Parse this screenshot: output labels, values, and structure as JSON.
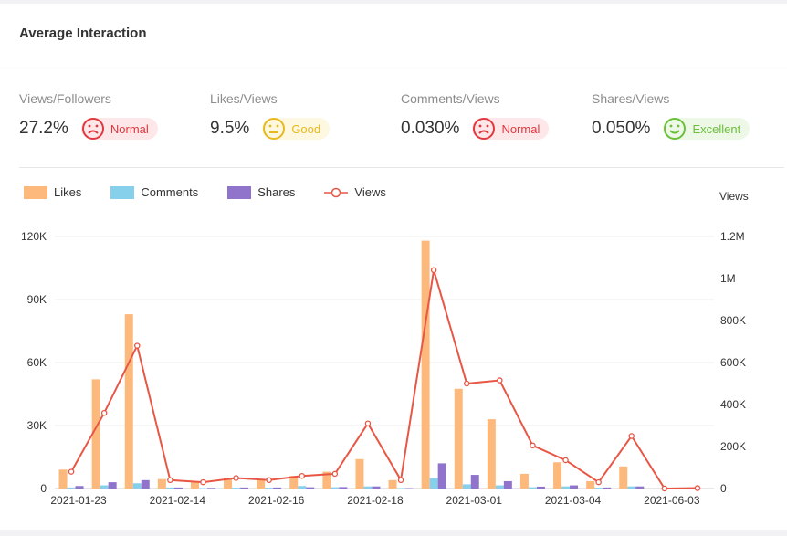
{
  "card": {
    "title": "Average Interaction"
  },
  "metrics": [
    {
      "label": "Views/Followers",
      "value": "27.2%",
      "status": "Normal",
      "face": "sad"
    },
    {
      "label": "Likes/Views",
      "value": "9.5%",
      "status": "Good",
      "face": "neutral"
    },
    {
      "label": "Comments/Views",
      "value": "0.030%",
      "status": "Normal",
      "face": "sad"
    },
    {
      "label": "Shares/Views",
      "value": "0.050%",
      "status": "Excellent",
      "face": "happy"
    }
  ],
  "colors": {
    "likes": "#fdb97c",
    "comments": "#86d0ec",
    "shares": "#9074cc",
    "views": "#e85645",
    "grid": "#ececec",
    "axis_text": "#333333"
  },
  "chart_data": {
    "type": "bar",
    "title": "",
    "legend": [
      "Likes",
      "Comments",
      "Shares",
      "Views"
    ],
    "y_right_title": "Views",
    "ylim": [
      0,
      120000
    ],
    "y2lim": [
      0,
      1200000
    ],
    "y_ticks": [
      "0",
      "30K",
      "60K",
      "90K",
      "120K"
    ],
    "y2_ticks": [
      "0",
      "200K",
      "400K",
      "600K",
      "800K",
      "1M",
      "1.2M"
    ],
    "x_tick_labels": [
      "2021-01-23",
      "2021-02-14",
      "2021-02-16",
      "2021-02-18",
      "2021-03-01",
      "2021-03-04",
      "2021-06-03"
    ],
    "series": [
      {
        "name": "Likes",
        "axis": "left",
        "values": [
          9000,
          52000,
          83000,
          4500,
          3000,
          5000,
          4000,
          6000,
          8000,
          14000,
          4000,
          118000,
          47500,
          33000,
          7000,
          12500,
          3500,
          10500,
          0,
          0
        ]
      },
      {
        "name": "Comments",
        "axis": "left",
        "values": [
          500,
          1500,
          2500,
          500,
          200,
          400,
          400,
          1200,
          600,
          1000,
          200,
          5000,
          2000,
          1500,
          600,
          1000,
          400,
          1000,
          0,
          0
        ]
      },
      {
        "name": "Shares",
        "axis": "left",
        "values": [
          1200,
          3000,
          4000,
          500,
          300,
          500,
          500,
          600,
          700,
          1000,
          200,
          12000,
          6500,
          3500,
          900,
          1500,
          500,
          1000,
          0,
          0
        ]
      },
      {
        "name": "Views",
        "axis": "right",
        "type": "line",
        "values": [
          80000,
          360000,
          680000,
          40000,
          30000,
          50000,
          40000,
          60000,
          70000,
          310000,
          40000,
          1040000,
          500000,
          515000,
          205000,
          135000,
          30000,
          250000,
          0,
          2000
        ]
      }
    ]
  }
}
